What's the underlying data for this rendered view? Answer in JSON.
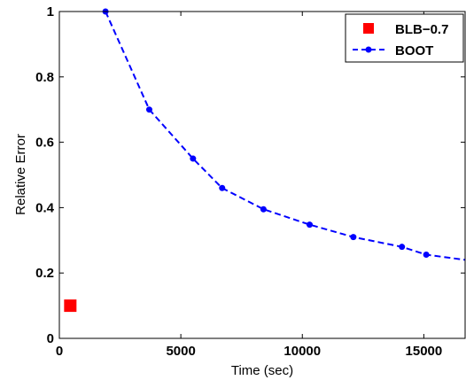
{
  "chart_data": {
    "type": "line",
    "xlabel": "Time (sec)",
    "ylabel": "Relative Error",
    "xlim": [
      0,
      16700
    ],
    "ylim": [
      0,
      1
    ],
    "x_ticks": [
      0,
      5000,
      10000,
      15000
    ],
    "x_tick_labels": [
      "0",
      "5000",
      "10000",
      "15000"
    ],
    "y_ticks": [
      0,
      0.2,
      0.4,
      0.6,
      0.8,
      1
    ],
    "y_tick_labels": [
      "0",
      "0.2",
      "0.4",
      "0.6",
      "0.8",
      "1"
    ],
    "grid": false,
    "legend_position": "top-right",
    "series": [
      {
        "name": "BLB−0.7",
        "style": "square-marker",
        "color": "#ff0000",
        "x": [
          450
        ],
        "y": [
          0.1
        ]
      },
      {
        "name": "BOOT",
        "style": "dashed-line-with-dots",
        "color": "#0000ff",
        "x": [
          1900,
          3700,
          5500,
          6700,
          8400,
          10300,
          12100,
          14100,
          15100,
          16700
        ],
        "y": [
          1.0,
          0.7,
          0.55,
          0.46,
          0.395,
          0.348,
          0.31,
          0.28,
          0.256,
          0.24
        ]
      }
    ]
  }
}
